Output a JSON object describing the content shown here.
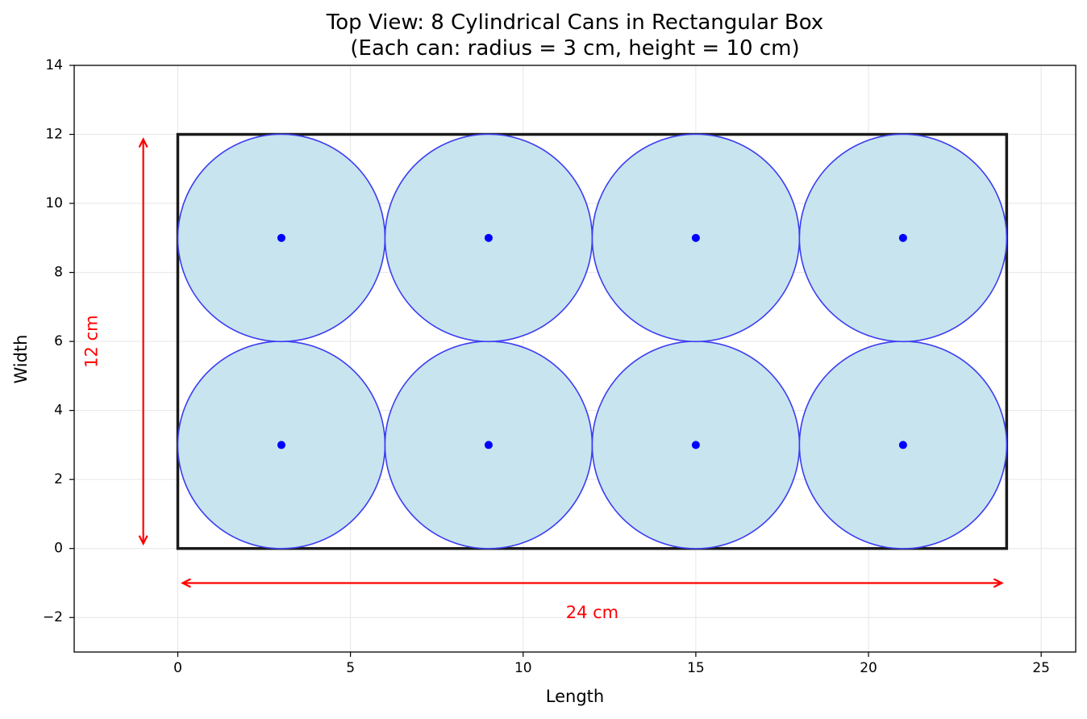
{
  "chart_data": {
    "type": "scatter",
    "title": "Top View: 8 Cylindrical Cans in Rectangular Box",
    "subtitle": "(Each can: radius = 3 cm, height = 10 cm)",
    "xlabel": "Length",
    "ylabel": "Width",
    "xlim": [
      -3,
      26
    ],
    "ylim": [
      -3,
      14
    ],
    "x_ticks": [
      0,
      5,
      10,
      15,
      20,
      25
    ],
    "y_ticks": [
      -2,
      0,
      2,
      4,
      6,
      8,
      10,
      12,
      14
    ],
    "x_tick_labels": [
      "0",
      "5",
      "10",
      "15",
      "20",
      "25"
    ],
    "y_tick_labels": [
      "−2",
      "0",
      "2",
      "4",
      "6",
      "8",
      "10",
      "12",
      "14"
    ],
    "grid": true,
    "legend": "none",
    "box": {
      "x0": 0,
      "y0": 0,
      "x1": 24,
      "y1": 12
    },
    "can_radius": 3,
    "cans": [
      {
        "x": 3,
        "y": 3
      },
      {
        "x": 9,
        "y": 3
      },
      {
        "x": 15,
        "y": 3
      },
      {
        "x": 21,
        "y": 3
      },
      {
        "x": 3,
        "y": 9
      },
      {
        "x": 9,
        "y": 9
      },
      {
        "x": 15,
        "y": 9
      },
      {
        "x": 21,
        "y": 9
      }
    ],
    "dimensions": [
      {
        "label": "24 cm",
        "orientation": "horizontal",
        "from": [
          0,
          -1
        ],
        "to": [
          24,
          -1
        ],
        "label_at": [
          12,
          -1.85
        ]
      },
      {
        "label": "12 cm",
        "orientation": "vertical",
        "from": [
          -1,
          0
        ],
        "to": [
          -1,
          12
        ],
        "label_at": [
          -2.5,
          6
        ]
      }
    ],
    "colors": {
      "can_fill": "#c5e3ee",
      "can_edge": "#3c3cf0",
      "center_dot": "#0000ff",
      "box_edge": "#1a1a1a",
      "dimension": "#ff0000",
      "grid": "#e6e6e6"
    }
  }
}
